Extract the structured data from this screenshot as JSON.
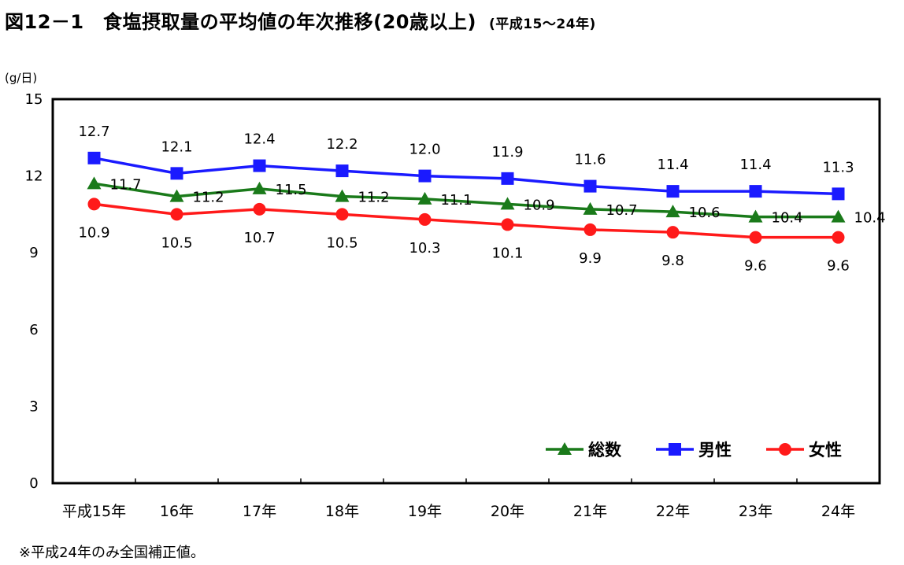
{
  "title": {
    "main": "図12－1　食塩摂取量の平均値の年次推移(20歳以上)",
    "sub": "(平成15～24年)"
  },
  "note": "※平成24年のみ全国補正値。",
  "colors": {
    "total": "#1a7a1a",
    "male": "#1a1aff",
    "female": "#ff1a1a",
    "frame": "#000000"
  },
  "chart_data": {
    "type": "line",
    "title": "",
    "ylabel": "(g/日)",
    "xlabel": "",
    "ylim": [
      0,
      15
    ],
    "yticks": [
      0,
      3,
      6,
      9,
      12,
      15
    ],
    "categories": [
      "平成15年",
      "16年",
      "17年",
      "18年",
      "19年",
      "20年",
      "21年",
      "22年",
      "23年",
      "24年"
    ],
    "series": [
      {
        "key": "male",
        "name": "男性",
        "marker": "square",
        "values": [
          12.7,
          12.1,
          12.4,
          12.2,
          12.0,
          11.9,
          11.6,
          11.4,
          11.4,
          11.3
        ],
        "labels": [
          "12.7",
          "12.1",
          "12.4",
          "12.2",
          "12.0",
          "11.9",
          "11.6",
          "11.4",
          "11.4",
          "11.3"
        ]
      },
      {
        "key": "total",
        "name": "総数",
        "marker": "triangle",
        "values": [
          11.7,
          11.2,
          11.5,
          11.2,
          11.1,
          10.9,
          10.7,
          10.6,
          10.4,
          10.4
        ],
        "labels": [
          "11.7",
          "11.2",
          "11.5",
          "11.2",
          "11.1",
          "10.9",
          "10.7",
          "10.6",
          "10.4",
          "10.4"
        ]
      },
      {
        "key": "female",
        "name": "女性",
        "marker": "circle",
        "values": [
          10.9,
          10.5,
          10.7,
          10.5,
          10.3,
          10.1,
          9.9,
          9.8,
          9.6,
          9.6
        ],
        "labels": [
          "10.9",
          "10.5",
          "10.7",
          "10.5",
          "10.3",
          "10.1",
          "9.9",
          "9.8",
          "9.6",
          "9.6"
        ]
      }
    ],
    "legend": {
      "placement": "bottom-right",
      "order": [
        "total",
        "male",
        "female"
      ]
    },
    "grid": false
  }
}
